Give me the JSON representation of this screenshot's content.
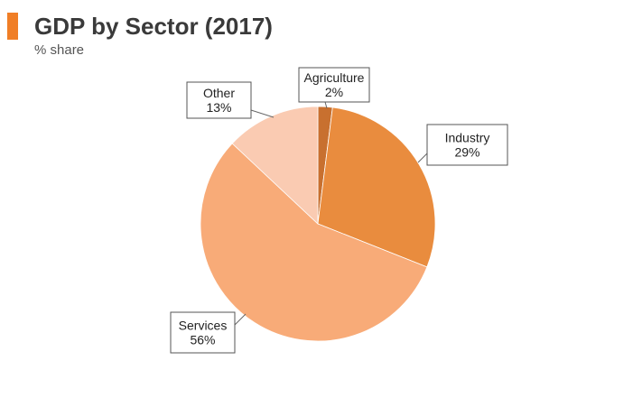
{
  "header": {
    "title": "GDP by Sector (2017)",
    "subtitle": "% share",
    "accent_color": "#f07e26"
  },
  "chart_data": {
    "type": "pie",
    "title": "GDP by Sector (2017)",
    "subtitle": "% share",
    "slices": [
      {
        "label": "Agriculture",
        "value": 2,
        "display": "2%",
        "color": "#c8702f"
      },
      {
        "label": "Industry",
        "value": 29,
        "display": "29%",
        "color": "#e98c3e"
      },
      {
        "label": "Services",
        "value": 56,
        "display": "56%",
        "color": "#f8ab78"
      },
      {
        "label": "Other",
        "value": 13,
        "display": "13%",
        "color": "#facbb2"
      }
    ],
    "start_angle_deg": 0,
    "direction": "clockwise",
    "labels": "callout boxes"
  }
}
